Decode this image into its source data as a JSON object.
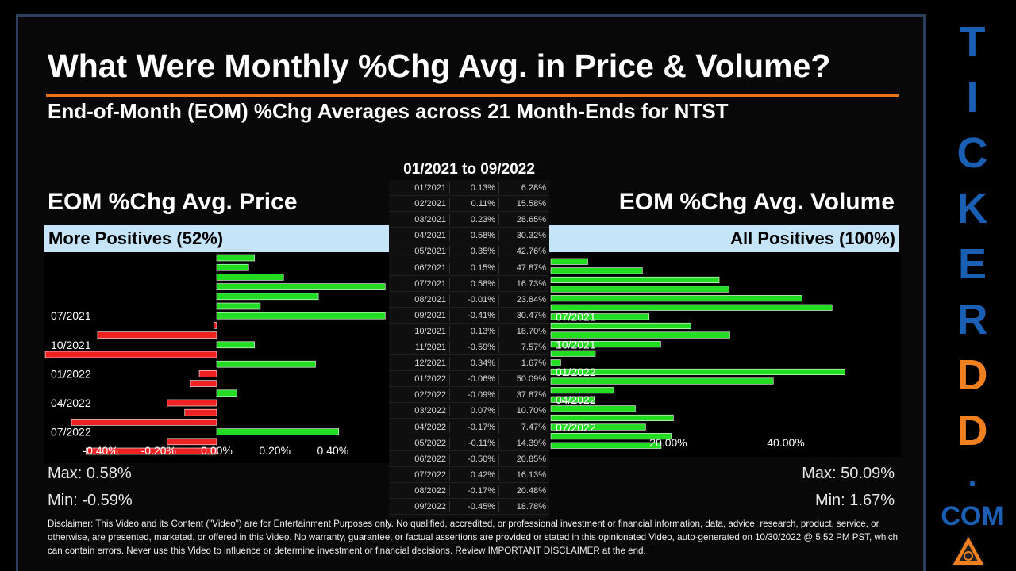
{
  "title": "What Were Monthly %Chg Avg. in Price & Volume?",
  "subtitle": "End-of-Month (EOM) %Chg Averages across 21 Month-Ends for NTST",
  "date_range": "01/2021 to 09/2022",
  "price_panel": {
    "heading": "EOM %Chg Avg. Price",
    "band": "More Positives (52%)",
    "max": "Max: 0.58%",
    "min": "Min: -0.59%"
  },
  "volume_panel": {
    "heading": "EOM %Chg Avg. Volume",
    "band": "All Positives (100%)",
    "max": "Max: 50.09%",
    "min": "Min: 1.67%"
  },
  "table": {
    "rows": [
      [
        "01/2021",
        "0.13%",
        "6.28%"
      ],
      [
        "02/2021",
        "0.11%",
        "15.58%"
      ],
      [
        "03/2021",
        "0.23%",
        "28.65%"
      ],
      [
        "04/2021",
        "0.58%",
        "30.32%"
      ],
      [
        "05/2021",
        "0.35%",
        "42.76%"
      ],
      [
        "06/2021",
        "0.15%",
        "47.87%"
      ],
      [
        "07/2021",
        "0.58%",
        "16.73%"
      ],
      [
        "08/2021",
        "-0.01%",
        "23.84%"
      ],
      [
        "09/2021",
        "-0.41%",
        "30.47%"
      ],
      [
        "10/2021",
        "0.13%",
        "18.70%"
      ],
      [
        "11/2021",
        "-0.59%",
        "7.57%"
      ],
      [
        "12/2021",
        "0.34%",
        "1.67%"
      ],
      [
        "01/2022",
        "-0.06%",
        "50.09%"
      ],
      [
        "02/2022",
        "-0.09%",
        "37.87%"
      ],
      [
        "03/2022",
        "0.07%",
        "10.70%"
      ],
      [
        "04/2022",
        "-0.17%",
        "7.47%"
      ],
      [
        "05/2022",
        "-0.11%",
        "14.39%"
      ],
      [
        "06/2022",
        "-0.50%",
        "20.85%"
      ],
      [
        "07/2022",
        "0.42%",
        "16.13%"
      ],
      [
        "08/2022",
        "-0.17%",
        "20.48%"
      ],
      [
        "09/2022",
        "-0.45%",
        "18.78%"
      ]
    ]
  },
  "chart_data": [
    {
      "type": "bar",
      "orientation": "horizontal",
      "title": "EOM %Chg Avg. Price",
      "categories": [
        "01/2021",
        "02/2021",
        "03/2021",
        "04/2021",
        "05/2021",
        "06/2021",
        "07/2021",
        "08/2021",
        "09/2021",
        "10/2021",
        "11/2021",
        "12/2021",
        "01/2022",
        "02/2022",
        "03/2022",
        "04/2022",
        "05/2022",
        "06/2022",
        "07/2022",
        "08/2022",
        "09/2022"
      ],
      "values": [
        0.13,
        0.11,
        0.23,
        0.58,
        0.35,
        0.15,
        0.58,
        -0.01,
        -0.41,
        0.13,
        -0.59,
        0.34,
        -0.06,
        -0.09,
        0.07,
        -0.17,
        -0.11,
        -0.5,
        0.42,
        -0.17,
        -0.45
      ],
      "category_labels": [
        "07/2021",
        "10/2021",
        "01/2022",
        "04/2022",
        "07/2022"
      ],
      "xticks": [
        "-0.40%",
        "-0.20%",
        "0.00%",
        "0.20%",
        "0.40%"
      ],
      "xlim": [
        -0.59,
        0.58
      ],
      "colors": {
        "positive": "#22dd22",
        "negative": "#ee2222"
      }
    },
    {
      "type": "bar",
      "orientation": "horizontal",
      "title": "EOM %Chg Avg. Volume",
      "categories": [
        "01/2021",
        "02/2021",
        "03/2021",
        "04/2021",
        "05/2021",
        "06/2021",
        "07/2021",
        "08/2021",
        "09/2021",
        "10/2021",
        "11/2021",
        "12/2021",
        "01/2022",
        "02/2022",
        "03/2022",
        "04/2022",
        "05/2022",
        "06/2022",
        "07/2022",
        "08/2022",
        "09/2022"
      ],
      "values": [
        6.28,
        15.58,
        28.65,
        30.32,
        42.76,
        47.87,
        16.73,
        23.84,
        30.47,
        18.7,
        7.57,
        1.67,
        50.09,
        37.87,
        10.7,
        7.47,
        14.39,
        20.85,
        16.13,
        20.48,
        18.78
      ],
      "category_labels": [
        "07/2021",
        "10/2021",
        "01/2022",
        "04/2022",
        "07/2022"
      ],
      "xticks": [
        "20.00%",
        "40.00%"
      ],
      "xlim": [
        0,
        60
      ],
      "colors": {
        "positive": "#22dd22"
      }
    }
  ],
  "disclaimer": "Disclaimer: This Video and its Content (\"Video\") are for Entertainment Purposes only. No qualified, accredited, or professional investment or financial information, data, advice, research, product, service, or otherwise, are presented, marketed, or offered in this Video. No warranty, guarantee, or factual assertions are provided or stated in this opinionated Video, auto-generated on 10/30/2022 @ 5:52 PM PST, which can contain errors. Never use this Video to influence or determine investment or financial decisions. Review IMPORTANT DISCLAIMER at the end.",
  "brand": {
    "letters": [
      "T",
      "I",
      "C",
      "K",
      "E",
      "R",
      "D",
      "D",
      "."
    ],
    "suffix": "COM",
    "colors": {
      "blue": "#1a5fb4",
      "orange": "#f08020"
    }
  }
}
